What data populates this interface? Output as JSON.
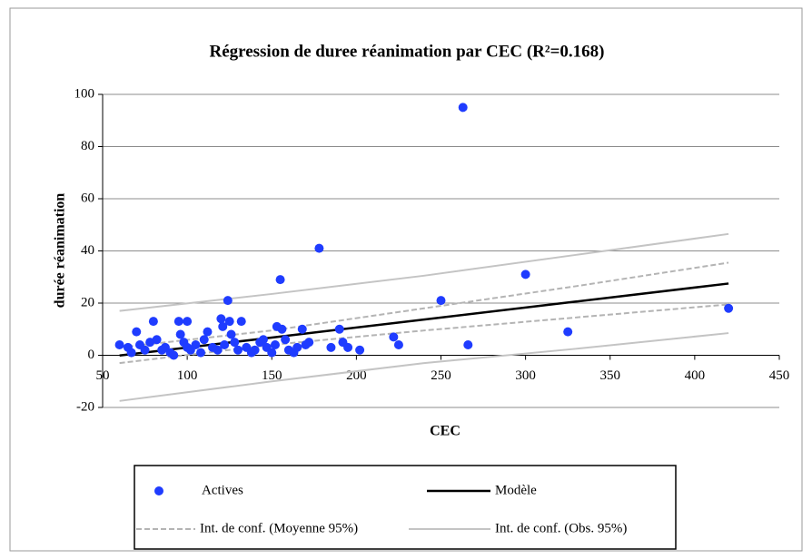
{
  "chart_data": {
    "type": "scatter",
    "title": "Régression de duree réanimation par CEC (R²=0.168)",
    "x_label": "CEC",
    "y_label": "durée réanimation",
    "xlim": [
      50,
      450
    ],
    "xticks": [
      50,
      100,
      150,
      200,
      250,
      300,
      350,
      400,
      450
    ],
    "ylim": [
      -20,
      100
    ],
    "yticks": [
      -20,
      0,
      20,
      40,
      60,
      80,
      100
    ],
    "grid": true,
    "legend": "bottom",
    "series": [
      {
        "name": "Actives",
        "kind": "points",
        "color": "#1f3cff",
        "x": [
          60,
          65,
          67,
          70,
          72,
          75,
          78,
          80,
          82,
          85,
          87,
          90,
          92,
          95,
          96,
          98,
          100,
          100,
          102,
          105,
          108,
          110,
          112,
          115,
          118,
          120,
          121,
          122,
          124,
          125,
          126,
          128,
          130,
          132,
          135,
          138,
          140,
          143,
          145,
          147,
          150,
          152,
          153,
          155,
          156,
          158,
          160,
          163,
          165,
          168,
          170,
          172,
          178,
          185,
          190,
          192,
          195,
          202,
          222,
          225,
          250,
          263,
          266,
          300,
          325,
          420
        ],
        "values": [
          4,
          3,
          1,
          9,
          4,
          2,
          5,
          13,
          6,
          2,
          3,
          1,
          0,
          13,
          8,
          5,
          13,
          3,
          2,
          4,
          1,
          6,
          9,
          3,
          2,
          14,
          11,
          4,
          21,
          13,
          8,
          5,
          2,
          13,
          3,
          1,
          2,
          5,
          6,
          3,
          1,
          4,
          11,
          29,
          10,
          6,
          2,
          1,
          3,
          10,
          4,
          5,
          41,
          3,
          10,
          5,
          3,
          2,
          7,
          4,
          21,
          95,
          4,
          31,
          9,
          18
        ]
      },
      {
        "name": "Modèle",
        "kind": "line",
        "color": "#000000",
        "x": [
          60,
          150,
          240,
          330,
          420
        ],
        "values": [
          -0.1,
          6.8,
          13.7,
          20.6,
          27.5
        ]
      },
      {
        "name": "Int. de conf. (Moyenne 95%)",
        "kind": "band",
        "color": "#b4b4b4",
        "dash": true,
        "x": [
          60,
          150,
          240,
          330,
          420
        ],
        "values": [
          3,
          9.5,
          18,
          26.5,
          35.5
        ],
        "lower": [
          -3,
          4,
          9.5,
          14.5,
          19.5
        ]
      },
      {
        "name": "Int. de conf. (Obs. 95%)",
        "kind": "band",
        "color": "#c4c4c4",
        "dash": false,
        "x": [
          60,
          150,
          240,
          330,
          420
        ],
        "values": [
          17,
          23.5,
          30.5,
          38.5,
          46.5
        ],
        "lower": [
          -17.5,
          -10,
          -3,
          2.5,
          8.5
        ]
      }
    ]
  }
}
